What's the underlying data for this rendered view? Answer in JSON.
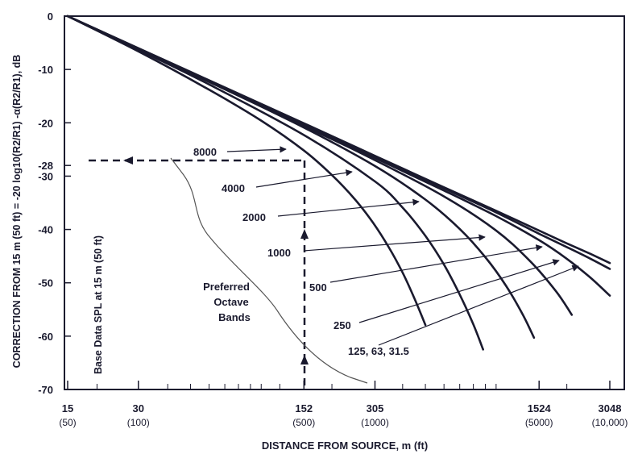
{
  "chart_data": {
    "type": "line",
    "title": "",
    "xlabel": "DISTANCE FROM SOURCE, m (ft)",
    "ylabel": "CORRECTION FROM 15 m (50 ft) = -20 log10(R2/R1) -α(R2/R1), dB",
    "x_scale": "log",
    "xlim": [
      15,
      3048
    ],
    "ylim": [
      -70,
      0
    ],
    "x_ticks": [
      {
        "value": 15,
        "label": "15",
        "sub": "(50)"
      },
      {
        "value": 30,
        "label": "30",
        "sub": "(100)"
      },
      {
        "value": 152,
        "label": "152",
        "sub": "(500)"
      },
      {
        "value": 305,
        "label": "305",
        "sub": "(1000)"
      },
      {
        "value": 1524,
        "label": "1524",
        "sub": "(5000)"
      },
      {
        "value": 3048,
        "label": "3048",
        "sub": "(10,000)"
      }
    ],
    "y_ticks": [
      {
        "value": 0,
        "label": "0"
      },
      {
        "value": -10,
        "label": "-10"
      },
      {
        "value": -20,
        "label": "-20"
      },
      {
        "value": -28,
        "label": "-28"
      },
      {
        "value": -30,
        "label": "-30"
      },
      {
        "value": -40,
        "label": "-40"
      },
      {
        "value": -50,
        "label": "-50"
      },
      {
        "value": -60,
        "label": "-60"
      },
      {
        "value": -70,
        "label": "-70"
      }
    ],
    "series": [
      {
        "name": "8000",
        "x": [
          15,
          30,
          60,
          100,
          152,
          200,
          250,
          300,
          350,
          400,
          450,
          500
        ],
        "y": [
          0,
          -6.6,
          -13.8,
          -19.6,
          -25.2,
          -29.8,
          -34.3,
          -38.8,
          -43.4,
          -48.1,
          -53.0,
          -57.9
        ]
      },
      {
        "name": "4000",
        "x": [
          15,
          30,
          60,
          152,
          305,
          400,
          500,
          600,
          700,
          800,
          880
        ],
        "y": [
          0,
          -6.3,
          -12.8,
          -22.3,
          -31.0,
          -35.9,
          -41.2,
          -46.6,
          -52.2,
          -57.8,
          -62.5
        ]
      },
      {
        "name": "2000",
        "x": [
          15,
          60,
          152,
          305,
          500,
          700,
          900,
          1100,
          1300,
          1450
        ],
        "y": [
          0,
          -12.3,
          -20.9,
          -28.1,
          -34.4,
          -39.9,
          -45.2,
          -50.5,
          -56.0,
          -60.3
        ]
      },
      {
        "name": "1000",
        "x": [
          15,
          152,
          305,
          600,
          1000,
          1400,
          1800,
          2100
        ],
        "y": [
          0,
          -20.6,
          -27.0,
          -33.8,
          -40.2,
          -46.0,
          -51.6,
          -56.0
        ]
      },
      {
        "name": "500",
        "x": [
          15,
          152,
          305,
          600,
          1000,
          1524,
          2000,
          2500,
          3048
        ],
        "y": [
          0,
          -20.3,
          -26.6,
          -32.7,
          -37.5,
          -42.0,
          -45.5,
          -48.9,
          -52.4
        ]
      },
      {
        "name": "250",
        "x": [
          15,
          152,
          305,
          600,
          1000,
          1524,
          2000,
          2500,
          3048
        ],
        "y": [
          0,
          -20.2,
          -26.4,
          -32.3,
          -36.8,
          -40.8,
          -43.3,
          -45.4,
          -47.4
        ]
      },
      {
        "name": "125, 63, 31.5",
        "x": [
          15,
          152,
          305,
          600,
          1000,
          1524,
          2000,
          2500,
          3048
        ],
        "y": [
          0,
          -20.1,
          -26.2,
          -32.1,
          -36.5,
          -40.2,
          -42.6,
          -44.5,
          -46.3
        ]
      }
    ],
    "reference": {
      "x": 152,
      "y": -28
    },
    "annotations": {
      "group": "Preferred Octave Bands",
      "group_lines": [
        "Preferred",
        "Octave",
        "Bands"
      ],
      "base_note": "Base Data SPL at 15 m (50 ft)"
    },
    "grid": false,
    "legend": "inline labels with arrows"
  }
}
